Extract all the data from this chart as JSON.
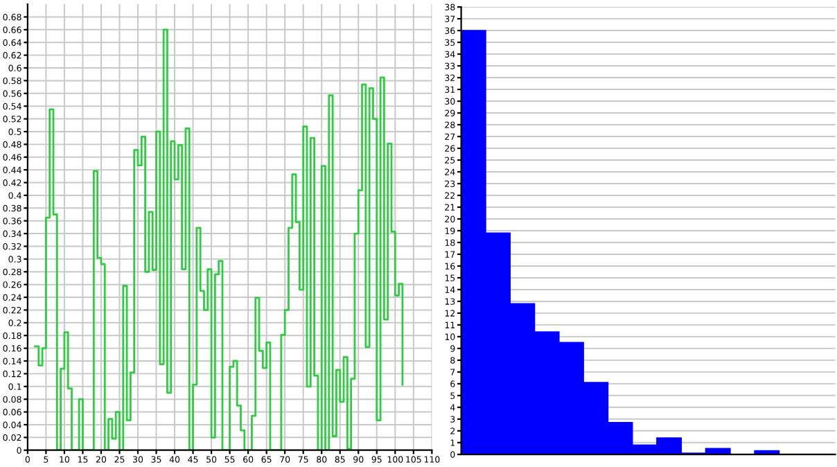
{
  "chart_data": [
    {
      "type": "step",
      "color": "#2ecc40",
      "xlim": [
        0,
        110
      ],
      "ylim": [
        0,
        0.7
      ],
      "xticks": [
        0,
        5,
        10,
        15,
        20,
        25,
        30,
        35,
        40,
        45,
        50,
        55,
        60,
        65,
        70,
        75,
        80,
        85,
        90,
        95,
        100,
        105,
        110
      ],
      "yticks": [
        0,
        0.02,
        0.04,
        0.06,
        0.08,
        0.1,
        0.12,
        0.14,
        0.16,
        0.18,
        0.2,
        0.22,
        0.24,
        0.26,
        0.28,
        0.3,
        0.32,
        0.34,
        0.36,
        0.38,
        0.4,
        0.42,
        0.44,
        0.46,
        0.48,
        0.5,
        0.52,
        0.54,
        0.56,
        0.58,
        0.6,
        0.62,
        0.64,
        0.66,
        0.68
      ],
      "grid": true,
      "x": [
        2,
        3,
        4,
        5,
        6,
        7,
        8,
        9,
        10,
        11,
        12,
        13,
        14,
        15,
        16,
        17,
        18,
        19,
        20,
        21,
        22,
        23,
        24,
        25,
        26,
        27,
        28,
        29,
        30,
        31,
        32,
        33,
        34,
        35,
        36,
        37,
        38,
        39,
        40,
        41,
        42,
        43,
        44,
        45,
        46,
        47,
        48,
        49,
        50,
        51,
        52,
        53,
        54,
        55,
        56,
        57,
        58,
        59,
        60,
        61,
        62,
        63,
        64,
        65,
        66,
        67,
        68,
        69,
        70,
        71,
        72,
        73,
        74,
        75,
        76,
        77,
        78,
        79,
        80,
        81,
        82,
        83,
        84,
        85,
        86,
        87,
        88,
        89,
        90,
        91,
        92,
        93,
        94,
        95,
        96,
        97,
        98,
        99,
        100,
        101,
        102
      ],
      "values": [
        0.163,
        0.133,
        0.16,
        0.365,
        0.535,
        0.37,
        0,
        0.128,
        0.185,
        0.097,
        0,
        0,
        0.08,
        0,
        0,
        0,
        0.438,
        0.302,
        0.292,
        0,
        0.049,
        0.018,
        0.06,
        0,
        0.258,
        0.047,
        0.122,
        0.471,
        0.447,
        0.492,
        0.28,
        0.374,
        0.283,
        0.5,
        0.135,
        0.66,
        0.09,
        0.485,
        0.425,
        0.479,
        0.284,
        0.505,
        0,
        0.103,
        0.349,
        0.25,
        0.22,
        0.284,
        0.02,
        0.276,
        0.297,
        0,
        0,
        0.131,
        0.14,
        0.07,
        0.031,
        0,
        0,
        0.054,
        0.239,
        0.156,
        0.129,
        0.169,
        0,
        0,
        0,
        0.181,
        0.22,
        0.349,
        0.433,
        0.358,
        0.252,
        0.508,
        0.1,
        0.49,
        0.117,
        0,
        0.446,
        0,
        0.557,
        0.022,
        0.126,
        0.076,
        0.146,
        0.002,
        0.112,
        0.34,
        0.408,
        0.574,
        0.162,
        0.568,
        0.52,
        0.047,
        0.585,
        0.205,
        0.481,
        0.343,
        0.243,
        0.261,
        0.103
      ]
    },
    {
      "type": "bar",
      "color": "#0000ff",
      "ylim": [
        0,
        38
      ],
      "yticks": [
        0,
        1,
        2,
        3,
        4,
        5,
        6,
        7,
        8,
        9,
        10,
        11,
        12,
        13,
        14,
        15,
        16,
        17,
        18,
        19,
        20,
        21,
        22,
        23,
        24,
        25,
        26,
        27,
        28,
        29,
        30,
        31,
        32,
        33,
        34,
        35,
        36,
        37,
        38
      ],
      "grid": "y",
      "tick_labels": "y",
      "categories": [
        null,
        null,
        null,
        null,
        null,
        null,
        null,
        null,
        null,
        null,
        null,
        null,
        null,
        null,
        null
      ],
      "values": [
        36,
        18.8,
        12.8,
        10.4,
        9.5,
        6.1,
        2.7,
        0.8,
        1.4,
        0.1,
        0.5,
        0,
        0.3,
        0,
        0
      ]
    }
  ]
}
